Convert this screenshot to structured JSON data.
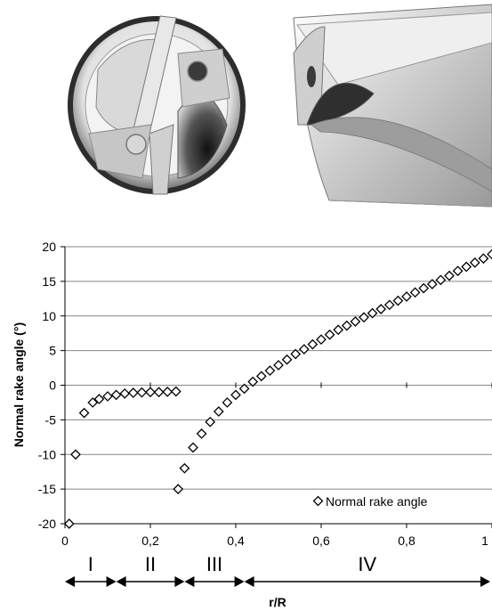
{
  "chart_data": {
    "type": "scatter",
    "xlabel": "r/R",
    "ylabel": "Normal rake angle (°)",
    "xlim": [
      0,
      1
    ],
    "ylim": [
      -20,
      20
    ],
    "x_tick_labels": [
      "0",
      "0,2",
      "0,4",
      "0,6",
      "0,8",
      "1"
    ],
    "y_tick_labels": [
      "20",
      "15",
      "10",
      "5",
      "0",
      "-5",
      "-10",
      "-15",
      "-20"
    ],
    "grid": "horizontal",
    "legend_position": "bottom-right",
    "series": [
      {
        "name": "Normal rake angle",
        "marker": "diamond-open",
        "points": [
          [
            0.01,
            -20
          ],
          [
            0.025,
            -10
          ],
          [
            0.045,
            -4
          ],
          [
            0.065,
            -2.5
          ],
          [
            0.08,
            -2
          ],
          [
            0.1,
            -1.6
          ],
          [
            0.12,
            -1.4
          ],
          [
            0.14,
            -1.2
          ],
          [
            0.16,
            -1.1
          ],
          [
            0.18,
            -1.05
          ],
          [
            0.2,
            -1
          ],
          [
            0.22,
            -1
          ],
          [
            0.24,
            -0.95
          ],
          [
            0.26,
            -0.9
          ],
          [
            0.265,
            -15
          ],
          [
            0.28,
            -12
          ],
          [
            0.3,
            -9
          ],
          [
            0.32,
            -7
          ],
          [
            0.34,
            -5.3
          ],
          [
            0.36,
            -3.8
          ],
          [
            0.38,
            -2.5
          ],
          [
            0.4,
            -1.4
          ],
          [
            0.42,
            -0.5
          ],
          [
            0.44,
            0.5
          ],
          [
            0.46,
            1.3
          ],
          [
            0.48,
            2.1
          ],
          [
            0.5,
            2.9
          ],
          [
            0.52,
            3.7
          ],
          [
            0.54,
            4.5
          ],
          [
            0.56,
            5.2
          ],
          [
            0.58,
            5.9
          ],
          [
            0.6,
            6.6
          ],
          [
            0.62,
            7.3
          ],
          [
            0.64,
            8
          ],
          [
            0.66,
            8.6
          ],
          [
            0.68,
            9.2
          ],
          [
            0.7,
            9.8
          ],
          [
            0.72,
            10.4
          ],
          [
            0.74,
            11
          ],
          [
            0.76,
            11.6
          ],
          [
            0.78,
            12.2
          ],
          [
            0.8,
            12.8
          ],
          [
            0.82,
            13.4
          ],
          [
            0.84,
            14
          ],
          [
            0.86,
            14.6
          ],
          [
            0.88,
            15.2
          ],
          [
            0.9,
            15.8
          ],
          [
            0.92,
            16.5
          ],
          [
            0.94,
            17.1
          ],
          [
            0.96,
            17.7
          ],
          [
            0.98,
            18.3
          ],
          [
            1.0,
            18.9
          ]
        ]
      }
    ],
    "zones": [
      {
        "label": "I",
        "from": 0,
        "to": 0.12
      },
      {
        "label": "II",
        "from": 0.12,
        "to": 0.28
      },
      {
        "label": "III",
        "from": 0.28,
        "to": 0.42
      },
      {
        "label": "IV",
        "from": 0.42,
        "to": 1.0
      }
    ]
  },
  "colors": {
    "marker_stroke": "#000000",
    "gridline": "#878787",
    "axis": "#000000",
    "drill_light": "#f0f0f0",
    "drill_mid": "#bdbdbd",
    "drill_dark": "#4a4a4a"
  }
}
